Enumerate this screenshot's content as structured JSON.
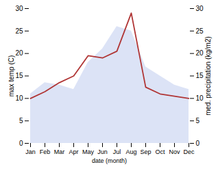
{
  "chart_data": {
    "type": "line",
    "categories": [
      "Jan",
      "Feb",
      "Mar",
      "Apr",
      "May",
      "Jun",
      "Jul",
      "Aug",
      "Sep",
      "Oct",
      "Nov",
      "Dec"
    ],
    "xlabel": "date (month)",
    "ylabel": "max temp (C)",
    "y2label": "med. precipitation (kg/m2)",
    "ylim": [
      0,
      30
    ],
    "yticks": [
      0,
      5,
      10,
      15,
      20,
      25,
      30
    ],
    "y2lim": [
      0,
      30
    ],
    "y2ticks": [
      0,
      5,
      10,
      15,
      20,
      25,
      30
    ],
    "series": [
      {
        "type": "area",
        "axis": "y2",
        "color": "#c0ccee",
        "values": [
          11.0,
          13.5,
          13.0,
          12.0,
          18.0,
          21.0,
          26.0,
          25.0,
          17.0,
          15.0,
          13.0,
          12.0
        ]
      },
      {
        "type": "line",
        "color": "#b03535",
        "values": [
          10.0,
          11.5,
          13.5,
          15.0,
          19.5,
          19.0,
          20.5,
          29.0,
          12.5,
          11.0,
          10.5,
          10.0
        ]
      }
    ]
  }
}
